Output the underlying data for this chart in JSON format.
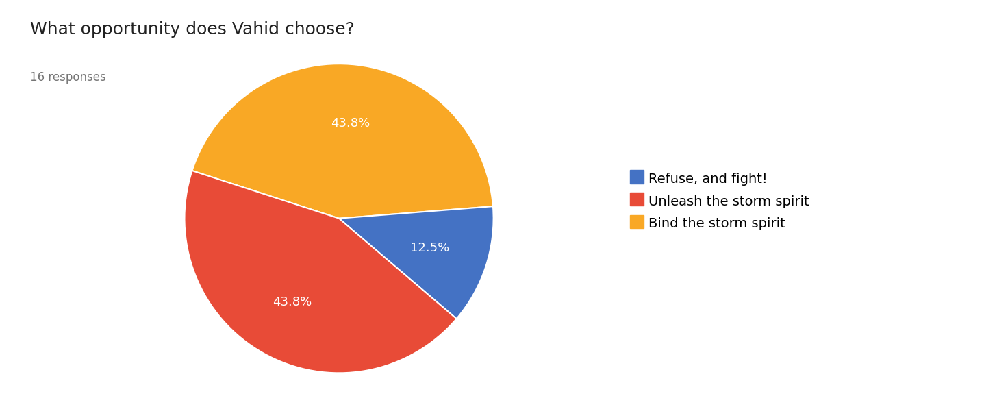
{
  "title": "What opportunity does Vahid choose?",
  "subtitle": "16 responses",
  "legend_labels": [
    "Refuse, and fight!",
    "Unleash the storm spirit",
    "Bind the storm spirit"
  ],
  "pie_labels": [
    "Bind the storm spirit",
    "Refuse, and fight!",
    "Unleash the storm spirit"
  ],
  "pie_values": [
    43.8,
    12.5,
    43.8
  ],
  "pie_colors": [
    "#F9A825",
    "#4472C4",
    "#E84B37"
  ],
  "legend_colors": [
    "#4472C4",
    "#E84B37",
    "#F9A825"
  ],
  "pct_labels": [
    "43.8%",
    "12.5%",
    "43.8%"
  ],
  "background_color": "#ffffff",
  "title_fontsize": 18,
  "subtitle_fontsize": 12,
  "legend_fontsize": 14,
  "pct_fontsize": 13,
  "startangle": 162
}
